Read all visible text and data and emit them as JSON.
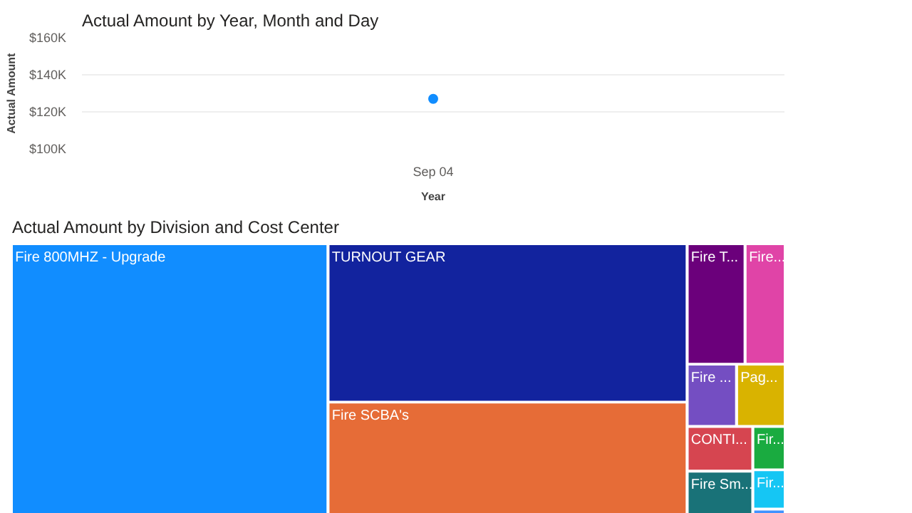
{
  "chart_data": [
    {
      "type": "scatter",
      "title": "Actual Amount by Year, Month and Day",
      "xlabel": "Year",
      "ylabel": "Actual Amount",
      "categories": [
        "Sep 04"
      ],
      "series": [
        {
          "color": "#118dff",
          "values": [
            127000
          ]
        }
      ],
      "ylim": [
        100000,
        160000
      ],
      "yticks": [
        {
          "value": 100000,
          "label": "$100K"
        },
        {
          "value": 120000,
          "label": "$120K"
        },
        {
          "value": 140000,
          "label": "$140K"
        },
        {
          "value": 160000,
          "label": "$160K"
        }
      ],
      "grid": "y",
      "marker": "circle"
    },
    {
      "type": "other",
      "title": "Actual Amount by Division and Cost Center",
      "categories": [
        "Fire 800MHZ - Upgrade",
        "TURNOUT GEAR",
        "Fire SCBA's",
        "Fire T...",
        "Fire...",
        "Fire ...",
        "Pag...",
        "CONTI...",
        "Fir...",
        "Fire Sm...",
        "Fir...",
        null
      ],
      "colors": [
        "#118dff",
        "#12239e",
        "#e66c37",
        "#6b007b",
        "#e044a7",
        "#744ec2",
        "#d9b300",
        "#d64550",
        "#1aab40",
        "#197278",
        "#15c6f4",
        "#4092ff"
      ]
    }
  ]
}
